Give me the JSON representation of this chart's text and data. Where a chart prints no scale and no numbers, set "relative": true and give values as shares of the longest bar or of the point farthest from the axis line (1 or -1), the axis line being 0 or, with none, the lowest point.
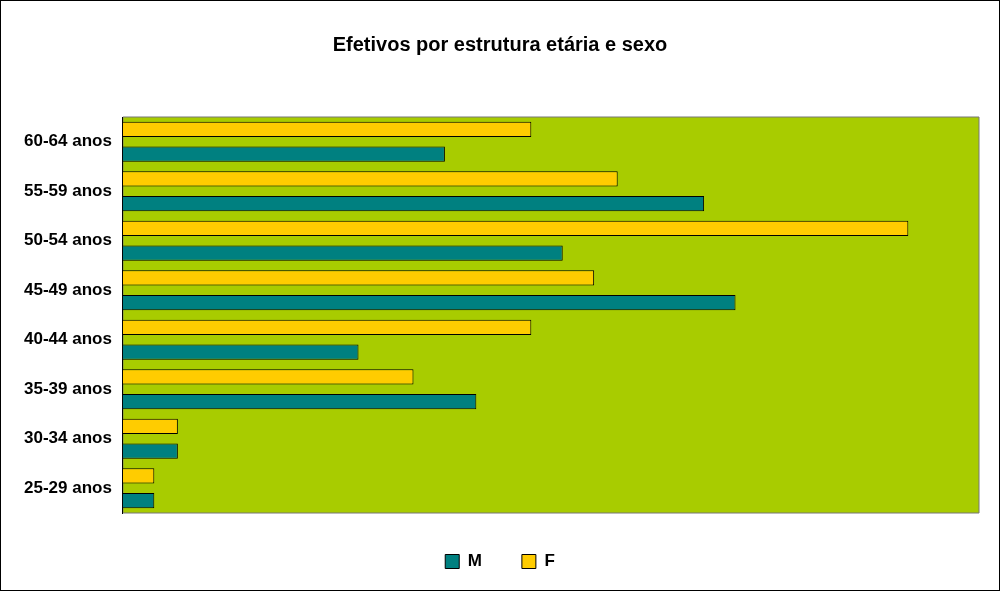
{
  "chart_data": {
    "type": "bar",
    "orientation": "horizontal",
    "relative": true,
    "title": "Efetivos por estrutura etária e sexo",
    "categories": [
      "60-64 anos",
      "55-59 anos",
      "50-54 anos",
      "45-49 anos",
      "40-44 anos",
      "35-39 anos",
      "30-34 anos",
      "25-29 anos"
    ],
    "series": [
      {
        "name": "M",
        "color": "#008080",
        "values": [
          0.41,
          0.74,
          0.56,
          0.78,
          0.3,
          0.45,
          0.07,
          0.04
        ]
      },
      {
        "name": "F",
        "color": "#ffcc00",
        "values": [
          0.52,
          0.63,
          1,
          0.6,
          0.52,
          0.37,
          0.07,
          0.04
        ]
      }
    ],
    "legend": "bottom"
  }
}
